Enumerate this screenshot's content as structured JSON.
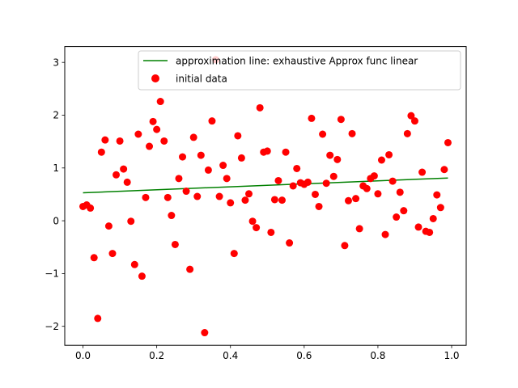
{
  "chart_data": {
    "type": "scatter",
    "xlim": [
      -0.0495,
      1.0395
    ],
    "ylim": [
      -2.36,
      3.3
    ],
    "x_ticks": [
      0.0,
      0.2,
      0.4,
      0.6,
      0.8,
      1.0
    ],
    "x_tick_labels": [
      "0.0",
      "0.2",
      "0.4",
      "0.6",
      "0.8",
      "1.0"
    ],
    "y_ticks": [
      -2,
      -1,
      0,
      1,
      2,
      3
    ],
    "y_tick_labels": [
      "−2",
      "−1",
      "0",
      "1",
      "2",
      "3"
    ],
    "grid": false,
    "legend_position": "top-right",
    "legend": [
      {
        "label": "approximation line: exhaustive Approx func linear",
        "kind": "line",
        "color": "#008000"
      },
      {
        "label": "initial data",
        "kind": "marker",
        "color": "#ff0000"
      }
    ],
    "series": [
      {
        "name": "initial data",
        "kind": "scatter",
        "color": "#ff0000",
        "x": [
          0.0,
          0.01,
          0.02,
          0.03,
          0.04,
          0.05,
          0.06,
          0.07,
          0.08,
          0.09,
          0.1,
          0.11,
          0.12,
          0.13,
          0.14,
          0.15,
          0.16,
          0.17,
          0.18,
          0.19,
          0.2,
          0.21,
          0.22,
          0.23,
          0.24,
          0.25,
          0.26,
          0.27,
          0.28,
          0.29,
          0.3,
          0.31,
          0.32,
          0.33,
          0.34,
          0.35,
          0.36,
          0.37,
          0.38,
          0.39,
          0.4,
          0.41,
          0.42,
          0.43,
          0.44,
          0.45,
          0.46,
          0.47,
          0.48,
          0.49,
          0.5,
          0.51,
          0.52,
          0.53,
          0.54,
          0.55,
          0.56,
          0.57,
          0.58,
          0.59,
          0.6,
          0.61,
          0.62,
          0.63,
          0.64,
          0.65,
          0.66,
          0.67,
          0.68,
          0.69,
          0.7,
          0.71,
          0.72,
          0.73,
          0.74,
          0.75,
          0.76,
          0.77,
          0.78,
          0.79,
          0.8,
          0.81,
          0.82,
          0.83,
          0.84,
          0.85,
          0.86,
          0.87,
          0.88,
          0.89,
          0.9,
          0.91,
          0.92,
          0.93,
          0.94,
          0.95,
          0.96,
          0.97,
          0.98,
          0.99
        ],
        "y": [
          0.27,
          0.3,
          0.24,
          -0.7,
          -1.85,
          1.3,
          1.53,
          -0.1,
          -0.62,
          0.87,
          1.51,
          0.98,
          0.73,
          -0.01,
          -0.83,
          1.64,
          -1.05,
          0.44,
          1.41,
          1.88,
          1.73,
          2.26,
          1.51,
          0.44,
          0.1,
          -0.45,
          0.8,
          1.21,
          0.56,
          -0.92,
          1.58,
          0.46,
          1.24,
          -2.12,
          0.96,
          1.89,
          3.05,
          0.46,
          1.05,
          0.8,
          0.34,
          -0.62,
          1.61,
          1.19,
          0.39,
          0.51,
          -0.01,
          -0.13,
          2.14,
          1.3,
          1.32,
          -0.22,
          0.4,
          0.76,
          0.39,
          1.3,
          -0.42,
          0.66,
          0.99,
          0.72,
          0.69,
          0.73,
          1.94,
          0.5,
          0.27,
          1.64,
          0.71,
          1.24,
          0.84,
          1.16,
          1.92,
          -0.47,
          0.38,
          1.65,
          0.42,
          -0.15,
          0.66,
          0.61,
          0.8,
          0.85,
          0.51,
          1.15,
          -0.26,
          1.25,
          0.75,
          0.07,
          0.54,
          0.19,
          1.65,
          1.99,
          1.89,
          -0.12,
          0.92,
          -0.2,
          -0.22,
          0.04,
          0.49,
          0.25,
          0.97,
          1.48
        ]
      },
      {
        "name": "approximation line: exhaustive Approx func linear",
        "kind": "line",
        "color": "#008000",
        "x": [
          0.0,
          0.99
        ],
        "y": [
          0.53,
          0.81
        ]
      }
    ]
  }
}
